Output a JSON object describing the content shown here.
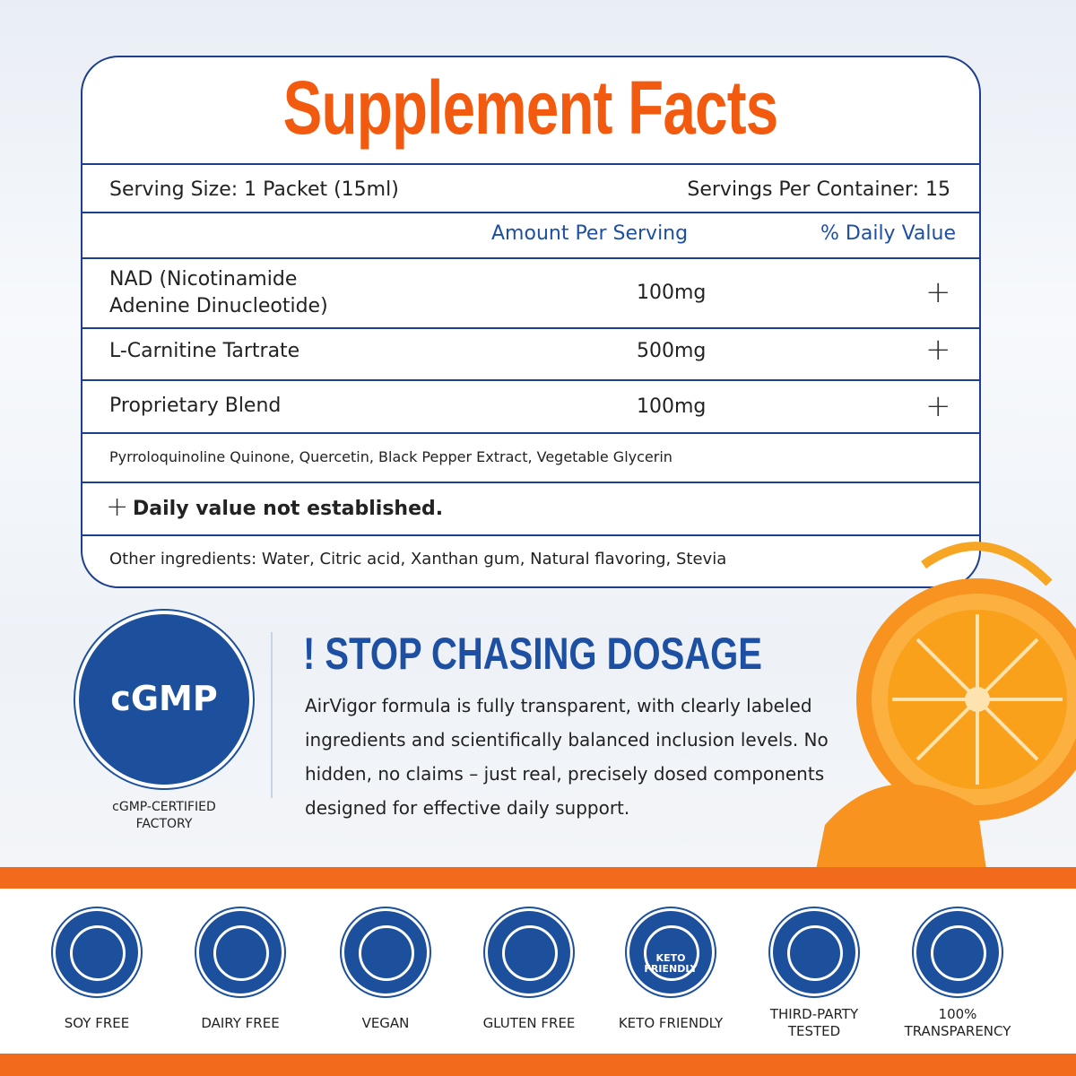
{
  "header": {
    "title": "Supplement Facts"
  },
  "serving": {
    "size": "Serving Size: 1 Packet (15ml)",
    "per_container": "Servings Per Container: 15"
  },
  "columns": [
    "Amount Per Serving",
    "% Daily Value"
  ],
  "table": {
    "rows": [
      {
        "name": "NAD (Nicotinamide Adenine Dinucleotide)",
        "amount": "100mg",
        "dv": "+"
      },
      {
        "name": "L-Carnitine Tartrate",
        "amount": "500mg",
        "dv": "+"
      },
      {
        "name": "Proprietary Blend",
        "amount": "100mg",
        "dv": "+"
      }
    ]
  },
  "blend_ingredients": "Pyrroloquinoline Quinone, Quercetin, Black Pepper Extract, Vegetable Glycerin",
  "footnote": {
    "symbol": "+",
    "text": "Daily value not established."
  },
  "other_ingredients": "Other ingredients: Water, Citric acid, Xanthan gum, Natural flavoring, Stevia",
  "badge": {
    "label": "cGMP",
    "caption": "cGMP-CERTIFIED FACTORY"
  },
  "promo": {
    "title": "! STOP CHASING DOSAGE",
    "body": "AirVigor formula is fully transparent, with clearly labeled ingredients and scientifically balanced inclusion levels. No hidden, no claims – just real, precisely dosed components designed for effective daily support."
  },
  "icons": [
    {
      "label": "SOY FREE"
    },
    {
      "label": "DAIRY FREE"
    },
    {
      "label": "VEGAN"
    },
    {
      "label": "GLUTEN FREE"
    },
    {
      "label": "KETO FRIENDLY",
      "inner": "KETO FRIENDLY"
    },
    {
      "label": "THIRD-PARTY TESTED"
    },
    {
      "label": "100% TRANSPARENCY"
    }
  ]
}
